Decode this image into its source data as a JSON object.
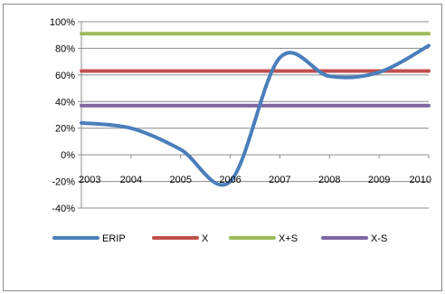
{
  "chart_data": {
    "type": "line",
    "title": "",
    "xlabel": "",
    "ylabel": "",
    "x": [
      2003,
      2004,
      2005,
      2006,
      2007,
      2008,
      2009,
      2010
    ],
    "x_tick_labels": [
      "2003",
      "2004",
      "2005",
      "2006",
      "2007",
      "2008",
      "2009",
      "2010"
    ],
    "ylim": [
      -40,
      100
    ],
    "y_ticks": [
      100,
      80,
      60,
      40,
      20,
      0,
      -20,
      -40
    ],
    "y_tick_labels": [
      "100%",
      "80%",
      "60%",
      "40%",
      "20%",
      "0%",
      "-20%",
      "-40%"
    ],
    "grid": "horizontal",
    "legend": "bottom",
    "series": [
      {
        "name": "ERIP",
        "color": "#4a7ebb",
        "smooth": true,
        "values": [
          24,
          20,
          4,
          -20,
          73,
          59,
          62,
          82
        ]
      },
      {
        "name": "X",
        "color": "#c0504d",
        "smooth": false,
        "values": [
          63,
          63,
          63,
          63,
          63,
          63,
          63,
          63
        ]
      },
      {
        "name": "X+S",
        "color": "#9bbb59",
        "smooth": false,
        "values": [
          91,
          91,
          91,
          91,
          91,
          91,
          91,
          91
        ]
      },
      {
        "name": "X-S",
        "color": "#8064a2",
        "smooth": false,
        "values": [
          37,
          37,
          37,
          37,
          37,
          37,
          37,
          37
        ]
      }
    ]
  }
}
